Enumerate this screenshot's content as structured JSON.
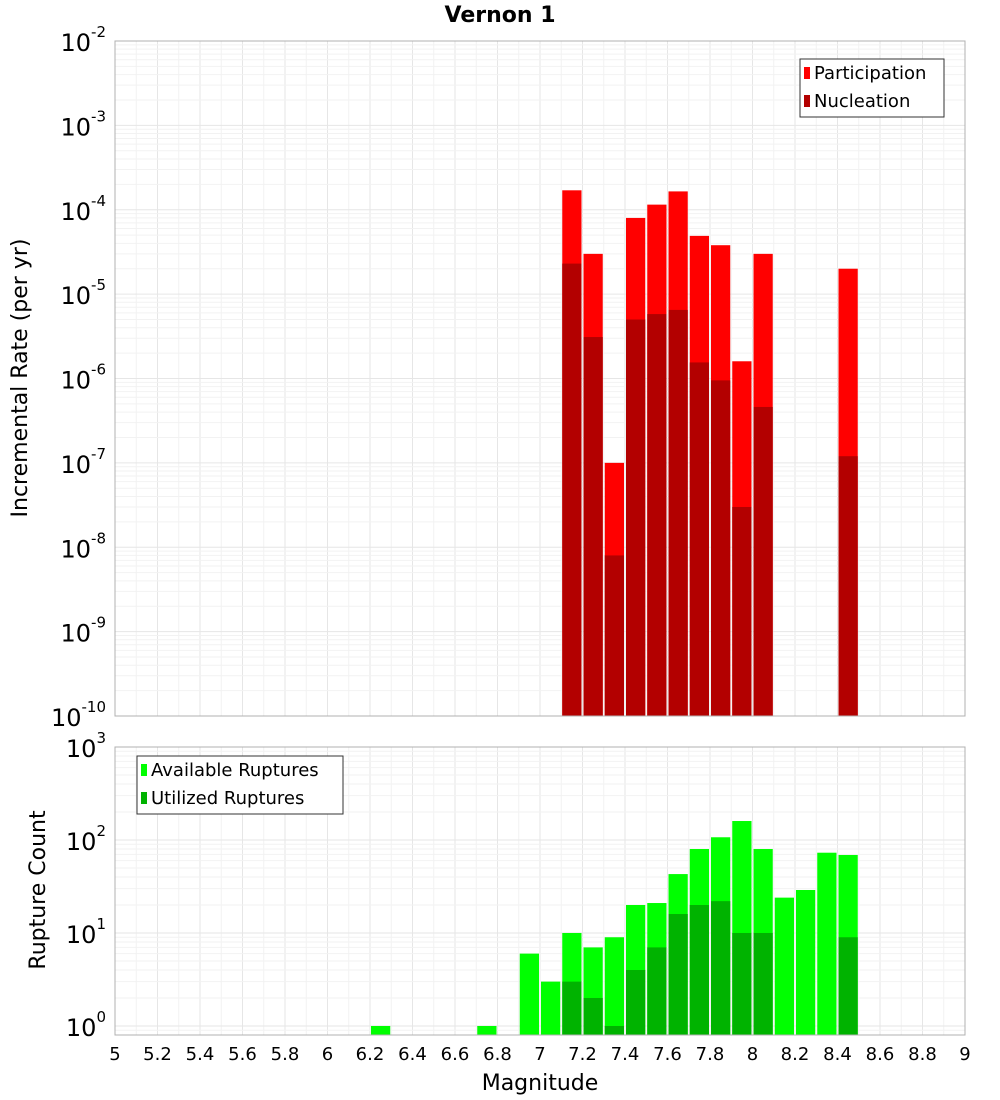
{
  "chart_data": [
    {
      "type": "bar",
      "title": "Vernon 1",
      "xlabel": "",
      "ylabel": "Incremental Rate (per yr)",
      "yscale": "log",
      "ylim": [
        1e-10,
        0.01
      ],
      "yticks": [
        {
          "base": "10",
          "exp": "-2"
        },
        {
          "base": "10",
          "exp": "-3"
        },
        {
          "base": "10",
          "exp": "-4"
        },
        {
          "base": "10",
          "exp": "-5"
        },
        {
          "base": "10",
          "exp": "-6"
        },
        {
          "base": "10",
          "exp": "-7"
        },
        {
          "base": "10",
          "exp": "-8"
        },
        {
          "base": "10",
          "exp": "-9"
        },
        {
          "base": "10",
          "exp": "-10"
        }
      ],
      "xlim": [
        5,
        9
      ],
      "bin_width": 0.1,
      "legend_position": "top-right",
      "series": [
        {
          "name": "Participation",
          "color": "#ff0000",
          "x": [
            7.15,
            7.25,
            7.35,
            7.45,
            7.55,
            7.65,
            7.75,
            7.85,
            7.95,
            8.05,
            8.45
          ],
          "values": [
            0.00017,
            3e-05,
            1e-07,
            8e-05,
            0.000115,
            0.000165,
            4.9e-05,
            3.8e-05,
            1.6e-06,
            3e-05,
            2e-05
          ]
        },
        {
          "name": "Nucleation",
          "color": "#b30000",
          "x": [
            7.15,
            7.25,
            7.35,
            7.45,
            7.55,
            7.65,
            7.75,
            7.85,
            7.95,
            8.05,
            8.45
          ],
          "values": [
            2.3e-05,
            3.1e-06,
            8e-09,
            5e-06,
            5.8e-06,
            6.5e-06,
            1.55e-06,
            9.5e-07,
            3e-08,
            4.6e-07,
            1.2e-07
          ]
        }
      ]
    },
    {
      "type": "bar",
      "title": "",
      "xlabel": "Magnitude",
      "ylabel": "Rupture Count",
      "yscale": "log",
      "ylim": [
        0.8,
        1000
      ],
      "yticks": [
        {
          "base": "10",
          "exp": "3"
        },
        {
          "base": "10",
          "exp": "2"
        },
        {
          "base": "10",
          "exp": "1"
        },
        {
          "base": "10",
          "exp": "0"
        }
      ],
      "xlim": [
        5,
        9
      ],
      "xticks": [
        "5",
        "5.2",
        "5.4",
        "5.6",
        "5.8",
        "6",
        "6.2",
        "6.4",
        "6.6",
        "6.8",
        "7",
        "7.2",
        "7.4",
        "7.6",
        "7.8",
        "8",
        "8.2",
        "8.4",
        "8.6",
        "8.8",
        "9"
      ],
      "bin_width": 0.1,
      "legend_position": "top-left",
      "series": [
        {
          "name": "Available Ruptures",
          "color": "#00ff00",
          "x": [
            6.25,
            6.75,
            6.95,
            7.05,
            7.15,
            7.25,
            7.35,
            7.45,
            7.55,
            7.65,
            7.75,
            7.85,
            7.95,
            8.05,
            8.15,
            8.25,
            8.35,
            8.45
          ],
          "values": [
            1,
            1,
            6,
            3,
            10,
            7,
            9,
            20,
            21,
            43,
            80,
            107,
            160,
            80,
            24,
            29,
            73,
            69
          ]
        },
        {
          "name": "Utilized Ruptures",
          "color": "#00b300",
          "x": [
            7.15,
            7.25,
            7.35,
            7.45,
            7.55,
            7.65,
            7.75,
            7.85,
            7.95,
            8.05,
            8.45
          ],
          "values": [
            3,
            2,
            1,
            4,
            7,
            16,
            20,
            22,
            10,
            10,
            9
          ]
        }
      ]
    }
  ]
}
